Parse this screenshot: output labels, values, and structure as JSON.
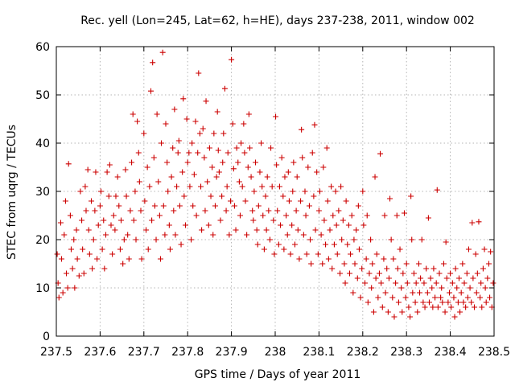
{
  "chart_data": {
    "type": "scatter",
    "title": "Rec. yell (Lon=245, Lat=62, h=HE), days 237-238, 2011, window 002",
    "xlabel": "GPS time / Days of year 2011",
    "ylabel": "STEC from uqrg / TECUs",
    "xlim": [
      237.5,
      238.5
    ],
    "ylim": [
      0,
      60
    ],
    "xticks": [
      "237.5",
      "237.6",
      "237.7",
      "237.8",
      "237.9",
      "238",
      "238.1",
      "238.2",
      "238.3",
      "238.4",
      "238.5"
    ],
    "yticks": [
      "0",
      "10",
      "20",
      "30",
      "40",
      "50",
      "60"
    ],
    "grid": true,
    "marker": "plus",
    "series_color": "#cc0000",
    "points": [
      [
        237.502,
        17
      ],
      [
        237.504,
        11
      ],
      [
        237.506,
        8
      ],
      [
        237.51,
        23.5
      ],
      [
        237.512,
        16
      ],
      [
        237.515,
        9
      ],
      [
        237.518,
        21
      ],
      [
        237.521,
        28
      ],
      [
        237.523,
        13
      ],
      [
        237.526,
        10
      ],
      [
        237.528,
        35.7
      ],
      [
        237.532,
        25
      ],
      [
        237.534,
        18
      ],
      [
        237.537,
        14
      ],
      [
        237.54,
        20
      ],
      [
        237.542,
        10
      ],
      [
        237.546,
        22
      ],
      [
        237.548,
        16
      ],
      [
        237.552,
        12.5
      ],
      [
        237.555,
        30
      ],
      [
        237.558,
        24
      ],
      [
        237.56,
        18
      ],
      [
        237.563,
        13
      ],
      [
        237.566,
        31
      ],
      [
        237.568,
        26
      ],
      [
        237.572,
        34.5
      ],
      [
        237.574,
        22
      ],
      [
        237.576,
        17
      ],
      [
        237.58,
        28
      ],
      [
        237.582,
        14
      ],
      [
        237.585,
        20
      ],
      [
        237.588,
        26
      ],
      [
        237.59,
        34
      ],
      [
        237.593,
        16
      ],
      [
        237.596,
        23
      ],
      [
        237.6,
        27
      ],
      [
        237.602,
        30
      ],
      [
        237.605,
        18
      ],
      [
        237.608,
        24
      ],
      [
        237.61,
        14
      ],
      [
        237.613,
        21
      ],
      [
        237.616,
        34
      ],
      [
        237.62,
        29
      ],
      [
        237.622,
        35.5
      ],
      [
        237.625,
        23
      ],
      [
        237.628,
        17
      ],
      [
        237.631,
        25
      ],
      [
        237.634,
        22
      ],
      [
        237.636,
        29
      ],
      [
        237.64,
        33
      ],
      [
        237.643,
        27
      ],
      [
        237.646,
        18
      ],
      [
        237.648,
        24
      ],
      [
        237.652,
        15
      ],
      [
        237.655,
        20
      ],
      [
        237.658,
        34.5
      ],
      [
        237.66,
        29
      ],
      [
        237.663,
        21
      ],
      [
        237.666,
        16
      ],
      [
        237.669,
        26
      ],
      [
        237.672,
        36
      ],
      [
        237.675,
        46
      ],
      [
        237.677,
        24
      ],
      [
        237.68,
        30
      ],
      [
        237.682,
        20
      ],
      [
        237.685,
        44.5
      ],
      [
        237.688,
        38
      ],
      [
        237.69,
        32
      ],
      [
        237.693,
        26
      ],
      [
        237.695,
        16
      ],
      [
        237.7,
        42
      ],
      [
        237.702,
        28
      ],
      [
        237.705,
        22
      ],
      [
        237.708,
        35
      ],
      [
        237.71,
        18
      ],
      [
        237.713,
        31
      ],
      [
        237.716,
        50.8
      ],
      [
        237.718,
        24
      ],
      [
        237.72,
        56.7
      ],
      [
        237.723,
        37
      ],
      [
        237.725,
        27
      ],
      [
        237.728,
        20
      ],
      [
        237.73,
        46
      ],
      [
        237.733,
        32
      ],
      [
        237.736,
        25
      ],
      [
        237.738,
        16
      ],
      [
        237.74,
        40
      ],
      [
        237.743,
        58.8
      ],
      [
        237.745,
        27
      ],
      [
        237.748,
        21
      ],
      [
        237.75,
        44
      ],
      [
        237.753,
        36
      ],
      [
        237.755,
        30
      ],
      [
        237.758,
        23
      ],
      [
        237.76,
        18
      ],
      [
        237.763,
        33
      ],
      [
        237.766,
        39
      ],
      [
        237.768,
        26
      ],
      [
        237.77,
        47
      ],
      [
        237.772,
        21
      ],
      [
        237.775,
        31
      ],
      [
        237.778,
        38
      ],
      [
        237.78,
        40.5
      ],
      [
        237.782,
        27
      ],
      [
        237.785,
        19
      ],
      [
        237.788,
        34
      ],
      [
        237.79,
        49.2
      ],
      [
        237.792,
        29
      ],
      [
        237.795,
        23
      ],
      [
        237.798,
        45
      ],
      [
        237.8,
        36
      ],
      [
        237.803,
        38
      ],
      [
        237.805,
        31
      ],
      [
        237.808,
        20
      ],
      [
        237.81,
        40
      ],
      [
        237.812,
        27
      ],
      [
        237.815,
        33.5
      ],
      [
        237.818,
        44.5
      ],
      [
        237.82,
        25
      ],
      [
        237.823,
        38
      ],
      [
        237.825,
        54.5
      ],
      [
        237.828,
        42
      ],
      [
        237.83,
        31
      ],
      [
        237.832,
        22
      ],
      [
        237.835,
        43
      ],
      [
        237.838,
        37
      ],
      [
        237.84,
        26
      ],
      [
        237.842,
        48.7
      ],
      [
        237.845,
        32
      ],
      [
        237.848,
        23
      ],
      [
        237.85,
        39
      ],
      [
        237.853,
        29
      ],
      [
        237.856,
        35
      ],
      [
        237.858,
        21
      ],
      [
        237.86,
        42
      ],
      [
        237.863,
        27
      ],
      [
        237.866,
        33
      ],
      [
        237.868,
        46.5
      ],
      [
        237.87,
        38.5
      ],
      [
        237.872,
        34
      ],
      [
        237.875,
        24
      ],
      [
        237.878,
        29
      ],
      [
        237.88,
        36
      ],
      [
        237.882,
        42
      ],
      [
        237.885,
        51.3
      ],
      [
        237.888,
        26
      ],
      [
        237.89,
        31
      ],
      [
        237.892,
        38
      ],
      [
        237.895,
        21
      ],
      [
        237.898,
        28
      ],
      [
        237.9,
        57.3
      ],
      [
        237.903,
        44
      ],
      [
        237.905,
        34.7
      ],
      [
        237.907,
        27
      ],
      [
        237.91,
        22
      ],
      [
        237.912,
        39
      ],
      [
        237.915,
        36
      ],
      [
        237.918,
        32
      ],
      [
        237.92,
        25
      ],
      [
        237.922,
        40
      ],
      [
        237.925,
        31
      ],
      [
        237.928,
        44
      ],
      [
        237.93,
        38
      ],
      [
        237.932,
        28
      ],
      [
        237.935,
        21
      ],
      [
        237.938,
        35
      ],
      [
        237.94,
        46
      ],
      [
        237.942,
        39
      ],
      [
        237.945,
        33
      ],
      [
        237.948,
        26
      ],
      [
        237.95,
        24
      ],
      [
        237.952,
        30
      ],
      [
        237.955,
        36
      ],
      [
        237.958,
        22
      ],
      [
        237.96,
        19
      ],
      [
        237.962,
        27
      ],
      [
        237.965,
        34
      ],
      [
        237.968,
        40
      ],
      [
        237.97,
        31
      ],
      [
        237.972,
        25
      ],
      [
        237.975,
        18
      ],
      [
        237.978,
        29
      ],
      [
        237.98,
        22
      ],
      [
        237.982,
        33
      ],
      [
        237.985,
        26
      ],
      [
        237.988,
        20
      ],
      [
        237.99,
        39
      ],
      [
        237.993,
        31
      ],
      [
        237.996,
        24
      ],
      [
        237.998,
        17
      ],
      [
        238.001,
        45.5
      ],
      [
        238.003,
        35.5
      ],
      [
        238.005,
        26
      ],
      [
        238.008,
        19
      ],
      [
        238.01,
        31
      ],
      [
        238.012,
        23
      ],
      [
        238.015,
        37
      ],
      [
        238.018,
        29
      ],
      [
        238.02,
        18
      ],
      [
        238.022,
        33
      ],
      [
        238.025,
        25
      ],
      [
        238.028,
        21
      ],
      [
        238.03,
        34
      ],
      [
        238.032,
        28
      ],
      [
        238.035,
        17
      ],
      [
        238.038,
        23
      ],
      [
        238.04,
        30
      ],
      [
        238.042,
        36
      ],
      [
        238.045,
        19
      ],
      [
        238.048,
        26
      ],
      [
        238.05,
        33
      ],
      [
        238.052,
        22
      ],
      [
        238.055,
        16
      ],
      [
        238.058,
        28
      ],
      [
        238.06,
        42.8
      ],
      [
        238.062,
        37
      ],
      [
        238.065,
        21
      ],
      [
        238.068,
        30
      ],
      [
        238.07,
        25
      ],
      [
        238.072,
        17
      ],
      [
        238.075,
        35
      ],
      [
        238.078,
        27
      ],
      [
        238.08,
        20
      ],
      [
        238.082,
        15
      ],
      [
        238.085,
        38
      ],
      [
        238.088,
        29
      ],
      [
        238.09,
        43.8
      ],
      [
        238.092,
        22
      ],
      [
        238.095,
        34
      ],
      [
        238.098,
        17
      ],
      [
        238.1,
        26
      ],
      [
        238.102,
        30
      ],
      [
        238.105,
        21
      ],
      [
        238.108,
        15
      ],
      [
        238.11,
        35
      ],
      [
        238.112,
        24
      ],
      [
        238.115,
        19
      ],
      [
        238.118,
        39
      ],
      [
        238.12,
        28
      ],
      [
        238.122,
        16
      ],
      [
        238.125,
        22
      ],
      [
        238.128,
        31
      ],
      [
        238.13,
        14
      ],
      [
        238.132,
        25
      ],
      [
        238.135,
        19
      ],
      [
        238.138,
        30
      ],
      [
        238.14,
        23
      ],
      [
        238.142,
        17
      ],
      [
        238.145,
        26
      ],
      [
        238.148,
        13
      ],
      [
        238.15,
        31
      ],
      [
        238.152,
        20
      ],
      [
        238.155,
        24
      ],
      [
        238.158,
        15
      ],
      [
        238.16,
        11
      ],
      [
        238.162,
        28
      ],
      [
        238.165,
        19
      ],
      [
        238.168,
        23
      ],
      [
        238.17,
        13
      ],
      [
        238.172,
        17
      ],
      [
        238.175,
        25
      ],
      [
        238.178,
        9
      ],
      [
        238.18,
        20
      ],
      [
        238.182,
        15
      ],
      [
        238.185,
        22
      ],
      [
        238.188,
        12
      ],
      [
        238.19,
        27
      ],
      [
        238.192,
        18
      ],
      [
        238.195,
        8
      ],
      [
        238.198,
        14
      ],
      [
        238.2,
        30
      ],
      [
        238.202,
        23
      ],
      [
        238.205,
        11
      ],
      [
        238.208,
        16
      ],
      [
        238.21,
        25
      ],
      [
        238.212,
        7
      ],
      [
        238.215,
        13
      ],
      [
        238.218,
        20
      ],
      [
        238.22,
        10
      ],
      [
        238.222,
        15
      ],
      [
        238.225,
        5
      ],
      [
        238.228,
        33
      ],
      [
        238.23,
        12
      ],
      [
        238.232,
        17
      ],
      [
        238.235,
        8
      ],
      [
        238.238,
        13
      ],
      [
        238.24,
        37.8
      ],
      [
        238.242,
        11
      ],
      [
        238.245,
        6
      ],
      [
        238.248,
        16
      ],
      [
        238.25,
        25
      ],
      [
        238.252,
        9
      ],
      [
        238.255,
        14
      ],
      [
        238.258,
        5
      ],
      [
        238.26,
        12
      ],
      [
        238.262,
        28.5
      ],
      [
        238.265,
        20
      ],
      [
        238.268,
        8
      ],
      [
        238.27,
        16
      ],
      [
        238.272,
        4
      ],
      [
        238.275,
        11
      ],
      [
        238.278,
        25
      ],
      [
        238.28,
        14
      ],
      [
        238.282,
        7
      ],
      [
        238.285,
        18
      ],
      [
        238.288,
        10
      ],
      [
        238.29,
        5
      ],
      [
        238.292,
        13
      ],
      [
        238.295,
        25.5
      ],
      [
        238.298,
        8
      ],
      [
        238.3,
        15
      ],
      [
        238.302,
        11
      ],
      [
        238.305,
        6
      ],
      [
        238.308,
        4
      ],
      [
        238.31,
        29
      ],
      [
        238.312,
        20
      ],
      [
        238.314,
        9
      ],
      [
        238.317,
        13
      ],
      [
        238.32,
        7
      ],
      [
        238.322,
        11
      ],
      [
        238.325,
        5
      ],
      [
        238.328,
        15
      ],
      [
        238.33,
        9
      ],
      [
        238.332,
        12
      ],
      [
        238.335,
        20
      ],
      [
        238.338,
        7
      ],
      [
        238.34,
        11
      ],
      [
        238.342,
        6
      ],
      [
        238.345,
        14
      ],
      [
        238.348,
        9
      ],
      [
        238.35,
        24.5
      ],
      [
        238.352,
        7
      ],
      [
        238.355,
        12
      ],
      [
        238.358,
        10
      ],
      [
        238.36,
        6
      ],
      [
        238.362,
        14
      ],
      [
        238.365,
        8
      ],
      [
        238.368,
        11
      ],
      [
        238.37,
        30.3
      ],
      [
        238.372,
        6
      ],
      [
        238.375,
        13
      ],
      [
        238.378,
        8
      ],
      [
        238.38,
        10
      ],
      [
        238.382,
        7
      ],
      [
        238.385,
        15
      ],
      [
        238.388,
        5
      ],
      [
        238.39,
        19.5
      ],
      [
        238.392,
        12
      ],
      [
        238.395,
        7
      ],
      [
        238.398,
        9
      ],
      [
        238.4,
        13
      ],
      [
        238.402,
        6
      ],
      [
        238.405,
        11
      ],
      [
        238.408,
        8
      ],
      [
        238.41,
        4
      ],
      [
        238.412,
        14
      ],
      [
        238.415,
        10
      ],
      [
        238.418,
        7
      ],
      [
        238.42,
        12
      ],
      [
        238.422,
        5
      ],
      [
        238.425,
        9
      ],
      [
        238.428,
        15
      ],
      [
        238.43,
        7
      ],
      [
        238.432,
        11
      ],
      [
        238.435,
        6
      ],
      [
        238.438,
        13
      ],
      [
        238.44,
        8
      ],
      [
        238.442,
        18
      ],
      [
        238.445,
        10
      ],
      [
        238.448,
        7
      ],
      [
        238.45,
        23.5
      ],
      [
        238.452,
        12
      ],
      [
        238.455,
        6
      ],
      [
        238.458,
        17
      ],
      [
        238.46,
        9
      ],
      [
        238.462,
        13
      ],
      [
        238.465,
        23.7
      ],
      [
        238.468,
        8
      ],
      [
        238.47,
        11
      ],
      [
        238.472,
        6
      ],
      [
        238.475,
        14
      ],
      [
        238.478,
        18
      ],
      [
        238.48,
        10
      ],
      [
        238.482,
        7
      ],
      [
        238.485,
        12
      ],
      [
        238.488,
        15
      ],
      [
        238.49,
        8
      ],
      [
        238.492,
        17.5
      ],
      [
        238.495,
        6
      ],
      [
        238.498,
        11
      ]
    ]
  }
}
